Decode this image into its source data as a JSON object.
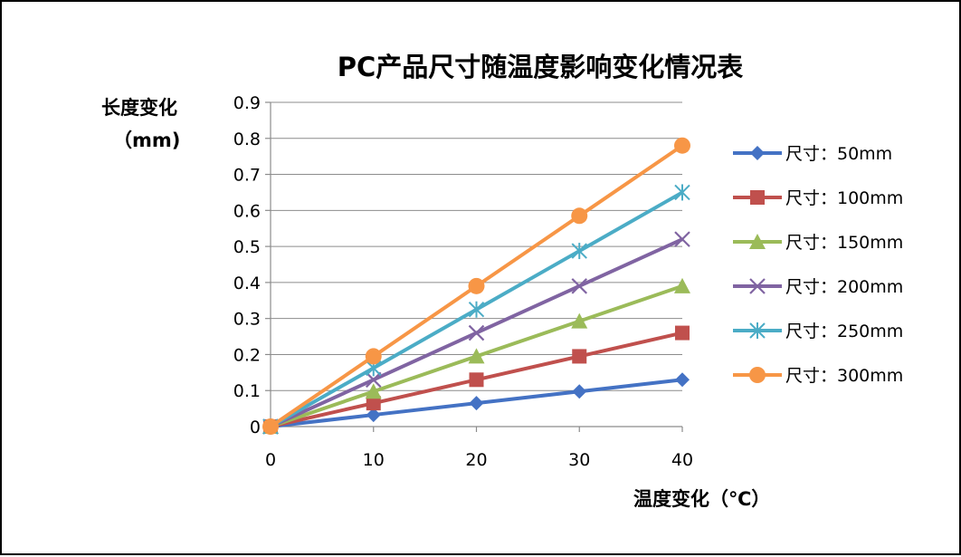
{
  "chart_data": {
    "type": "line",
    "title": "PC产品尺寸随温度影响变化情况表",
    "ylabel_line1": "长度变化",
    "ylabel_line2": "（mm)",
    "xlabel": "温度变化（℃）",
    "x": [
      0,
      10,
      20,
      30,
      40
    ],
    "xlim": [
      0,
      40
    ],
    "ylim": [
      0,
      0.9
    ],
    "xticks": [
      "0",
      "10",
      "20",
      "30",
      "40"
    ],
    "yticks": [
      "0",
      "0.1",
      "0.2",
      "0.3",
      "0.4",
      "0.5",
      "0.6",
      "0.7",
      "0.8",
      "0.9"
    ],
    "grid": "horizontal",
    "legend_position": "right",
    "series": [
      {
        "name": "尺寸：50mm",
        "values": [
          0,
          0.0325,
          0.065,
          0.0975,
          0.13
        ],
        "color": "#4472C4",
        "marker": "diamond"
      },
      {
        "name": "尺寸：100mm",
        "values": [
          0,
          0.065,
          0.13,
          0.195,
          0.26
        ],
        "color": "#C0504D",
        "marker": "square"
      },
      {
        "name": "尺寸：150mm",
        "values": [
          0,
          0.0975,
          0.195,
          0.2925,
          0.39
        ],
        "color": "#9BBB59",
        "marker": "triangle"
      },
      {
        "name": "尺寸：200mm",
        "values": [
          0,
          0.13,
          0.26,
          0.39,
          0.52
        ],
        "color": "#8064A2",
        "marker": "x"
      },
      {
        "name": "尺寸：250mm",
        "values": [
          0,
          0.1625,
          0.325,
          0.4875,
          0.65
        ],
        "color": "#4BACC6",
        "marker": "star"
      },
      {
        "name": "尺寸：300mm",
        "values": [
          0,
          0.195,
          0.39,
          0.585,
          0.78
        ],
        "color": "#F79646",
        "marker": "circle"
      }
    ]
  }
}
